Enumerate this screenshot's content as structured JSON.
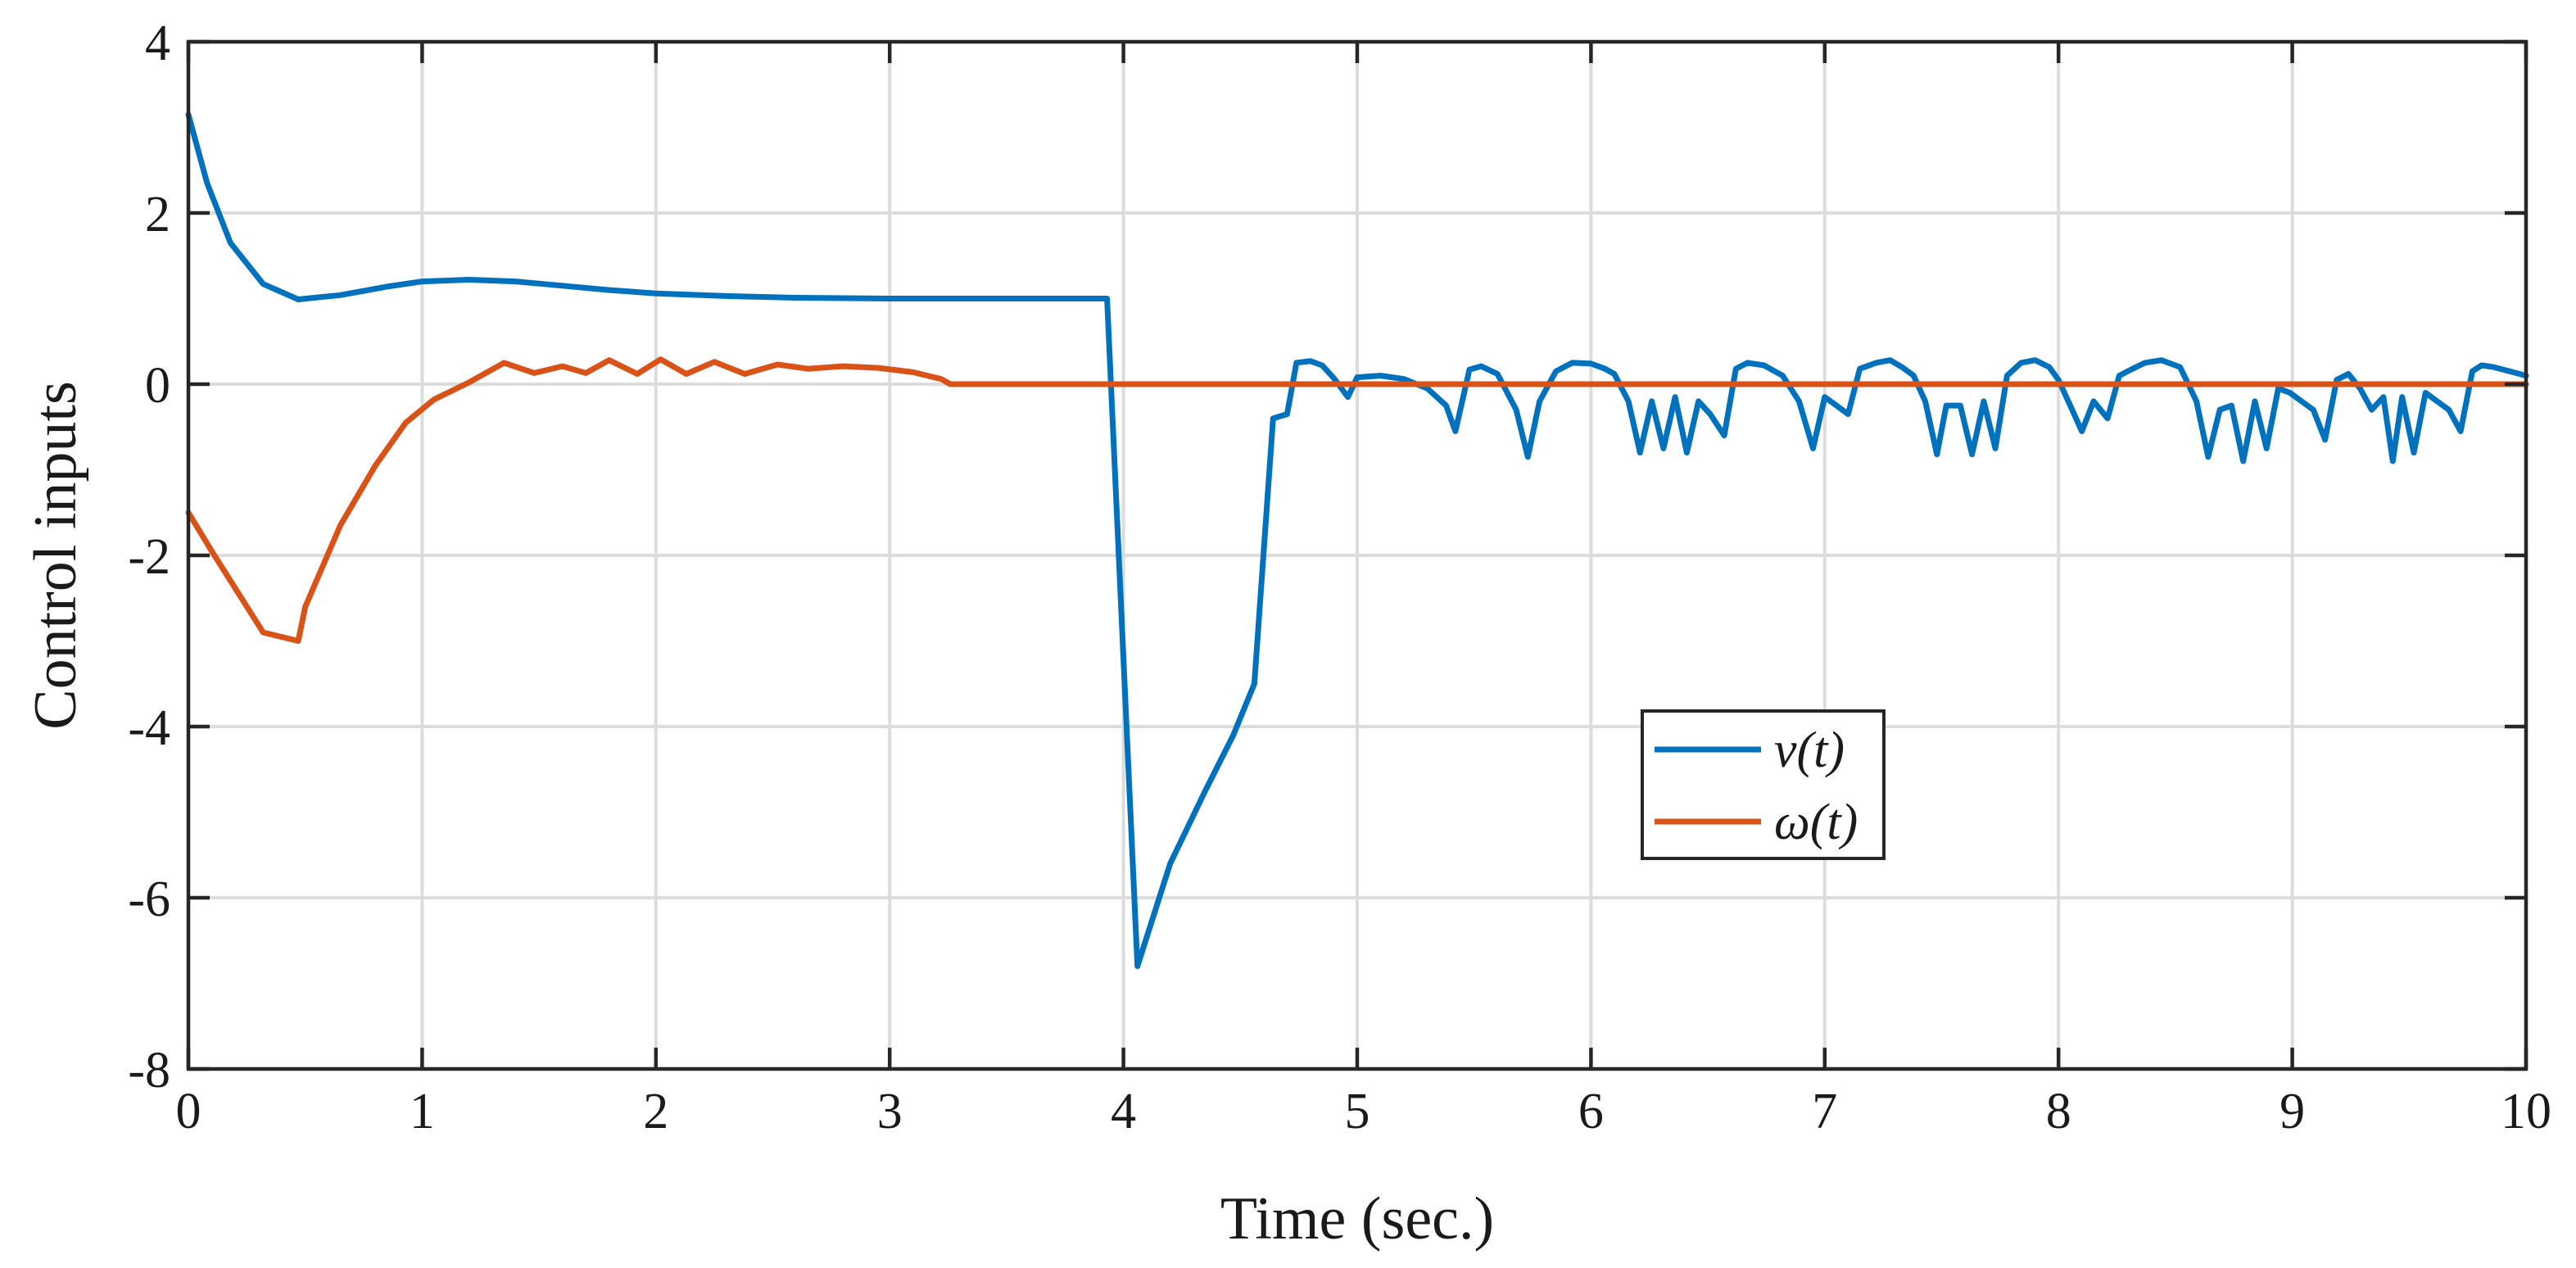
{
  "chart_data": {
    "type": "line",
    "title": "",
    "xlabel": "Time (sec.)",
    "ylabel": "Control inputs",
    "xlim": [
      0,
      10
    ],
    "ylim": [
      -8,
      4
    ],
    "grid": true,
    "legend_position": "center-right",
    "x_ticks": [
      "0",
      "1",
      "2",
      "3",
      "4",
      "5",
      "6",
      "7",
      "8",
      "9",
      "10"
    ],
    "y_ticks": [
      "4",
      "2",
      "0",
      "-2",
      "-4",
      "-6",
      "-8"
    ],
    "series": [
      {
        "name": "ν(t)",
        "color": "#0072BD",
        "x": [
          0,
          0.08,
          0.18,
          0.32,
          0.47,
          0.65,
          0.85,
          1.0,
          1.2,
          1.4,
          1.6,
          1.8,
          2.0,
          2.3,
          2.6,
          3.0,
          3.5,
          3.93,
          4.06,
          4.2,
          4.35,
          4.47,
          4.56,
          4.64,
          4.7,
          4.74,
          4.8,
          4.85,
          4.9,
          4.96,
          5.0,
          5.1,
          5.2,
          5.3,
          5.38,
          5.42,
          5.48,
          5.53,
          5.6,
          5.68,
          5.73,
          5.78,
          5.85,
          5.92,
          6.0,
          6.06,
          6.1,
          6.16,
          6.21,
          6.26,
          6.31,
          6.36,
          6.41,
          6.46,
          6.51,
          6.57,
          6.62,
          6.67,
          6.74,
          6.82,
          6.89,
          6.95,
          7.0,
          7.05,
          7.1,
          7.15,
          7.22,
          7.28,
          7.33,
          7.38,
          7.43,
          7.48,
          7.52,
          7.58,
          7.63,
          7.68,
          7.73,
          7.78,
          7.84,
          7.9,
          7.96,
          8.0,
          8.05,
          8.1,
          8.15,
          8.21,
          8.26,
          8.31,
          8.37,
          8.44,
          8.52,
          8.59,
          8.64,
          8.69,
          8.74,
          8.79,
          8.84,
          8.89,
          8.94,
          8.99,
          9.04,
          9.09,
          9.14,
          9.19,
          9.24,
          9.29,
          9.34,
          9.39,
          9.43,
          9.47,
          9.52,
          9.57,
          9.62,
          9.67,
          9.72,
          9.77,
          9.81,
          9.86,
          9.93,
          10.0
        ],
        "values": [
          3.15,
          2.35,
          1.65,
          1.17,
          0.99,
          1.04,
          1.14,
          1.2,
          1.22,
          1.2,
          1.15,
          1.1,
          1.06,
          1.03,
          1.01,
          1.0,
          1.0,
          1.0,
          -6.8,
          -5.6,
          -4.75,
          -4.1,
          -3.5,
          -0.4,
          -0.35,
          0.25,
          0.27,
          0.22,
          0.07,
          -0.15,
          0.08,
          0.1,
          0.06,
          -0.05,
          -0.25,
          -0.55,
          0.17,
          0.21,
          0.12,
          -0.3,
          -0.85,
          -0.2,
          0.15,
          0.25,
          0.24,
          0.18,
          0.12,
          -0.2,
          -0.8,
          -0.2,
          -0.75,
          -0.15,
          -0.8,
          -0.2,
          -0.35,
          -0.6,
          0.18,
          0.25,
          0.22,
          0.1,
          -0.2,
          -0.75,
          -0.15,
          -0.25,
          -0.35,
          0.18,
          0.25,
          0.28,
          0.2,
          0.1,
          -0.2,
          -0.82,
          -0.25,
          -0.25,
          -0.82,
          -0.2,
          -0.75,
          0.1,
          0.25,
          0.28,
          0.2,
          0.05,
          -0.25,
          -0.55,
          -0.2,
          -0.4,
          0.1,
          0.17,
          0.25,
          0.28,
          0.2,
          -0.2,
          -0.85,
          -0.3,
          -0.25,
          -0.9,
          -0.2,
          -0.75,
          -0.05,
          -0.1,
          -0.2,
          -0.3,
          -0.65,
          0.05,
          0.12,
          -0.05,
          -0.3,
          -0.15,
          -0.9,
          -0.15,
          -0.8,
          -0.1,
          -0.2,
          -0.3,
          -0.55,
          0.15,
          0.22,
          0.2,
          0.15,
          0.1
        ]
      },
      {
        "name": "ω(t)",
        "color": "#D95319",
        "x": [
          0,
          0.1,
          0.32,
          0.47,
          0.5,
          0.65,
          0.8,
          0.93,
          1.05,
          1.2,
          1.35,
          1.48,
          1.6,
          1.7,
          1.8,
          1.92,
          2.02,
          2.13,
          2.25,
          2.38,
          2.52,
          2.65,
          2.8,
          2.95,
          3.1,
          3.22,
          3.26,
          3.5,
          4.0,
          5.0,
          6.0,
          7.0,
          8.0,
          9.0,
          10.0
        ],
        "values": [
          -1.5,
          -1.95,
          -2.9,
          -3.0,
          -2.6,
          -1.65,
          -0.95,
          -0.45,
          -0.18,
          0.02,
          0.25,
          0.13,
          0.21,
          0.13,
          0.28,
          0.12,
          0.29,
          0.12,
          0.26,
          0.12,
          0.23,
          0.18,
          0.21,
          0.19,
          0.14,
          0.06,
          0.0,
          0.0,
          0.0,
          0.0,
          0.0,
          0.0,
          0.0,
          0.0,
          0.0
        ]
      }
    ]
  }
}
